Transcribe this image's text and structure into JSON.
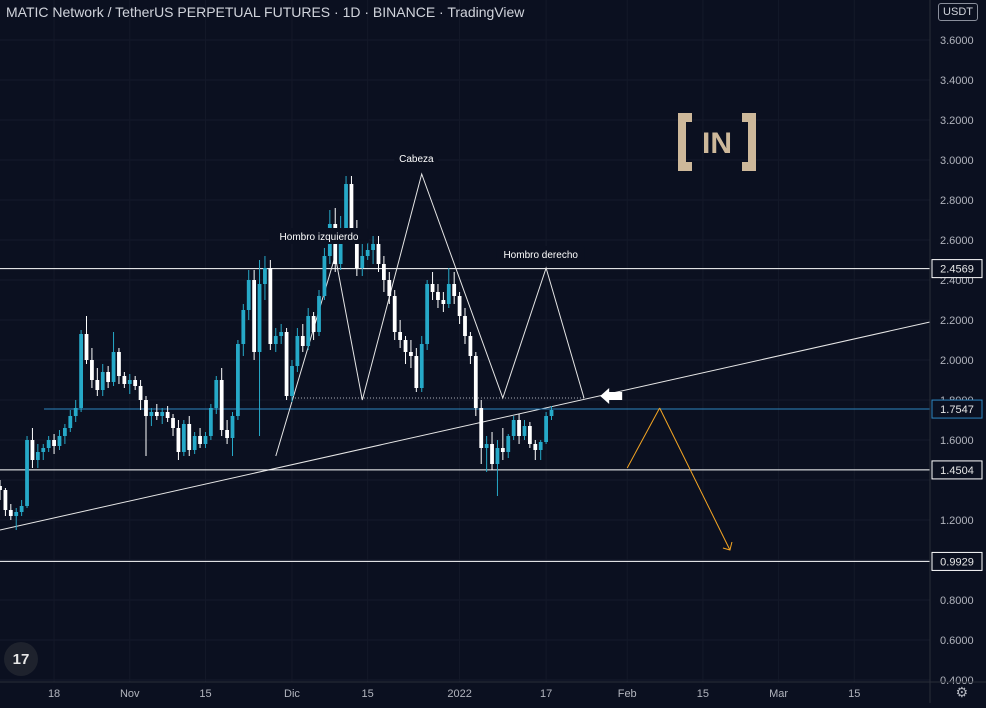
{
  "header": {
    "title": "MATIC Network / TetherUS PERPETUAL FUTURES · 1D · BINANCE · TradingView",
    "unit": "USDT"
  },
  "branding": {
    "logo_text": "IN",
    "tv_logo_text": "17"
  },
  "colors": {
    "background": "#0b1020",
    "bull": "#26a9c8",
    "bear": "#ffffff",
    "accent": "#2e86c1",
    "projection": "#f5a623",
    "axis_text": "#b2b5be",
    "logo": "#cdb89a"
  },
  "chart_data": {
    "type": "candlestick",
    "title": "",
    "y_scale": "linear",
    "ylim": [
      0.3,
      3.9
    ],
    "y_ticks": [
      0.4,
      0.6,
      0.8,
      1.0,
      1.2,
      1.4,
      1.6,
      1.8,
      2.0,
      2.2,
      2.4,
      2.6,
      2.8,
      3.0,
      3.2,
      3.4,
      3.6
    ],
    "y_tick_labels": [
      "0.4000",
      "0.6000",
      "0.8000",
      "",
      "1.2000",
      "",
      "1.6000",
      "1.8000",
      "2.0000",
      "2.2000",
      "2.4000",
      "2.6000",
      "2.8000",
      "3.0000",
      "3.2000",
      "3.4000",
      "3.6000"
    ],
    "x_start": "2021-10-08",
    "x_end": "2022-03-29",
    "x_ticks": [
      {
        "date": "2021-10-18",
        "label": "18"
      },
      {
        "date": "2021-11-01",
        "label": "Nov"
      },
      {
        "date": "2021-11-15",
        "label": "15"
      },
      {
        "date": "2021-12-01",
        "label": "Dic"
      },
      {
        "date": "2021-12-15",
        "label": "15"
      },
      {
        "date": "2022-01-01",
        "label": "2022"
      },
      {
        "date": "2022-01-17",
        "label": "17"
      },
      {
        "date": "2022-02-01",
        "label": "Feb"
      },
      {
        "date": "2022-02-15",
        "label": "15"
      },
      {
        "date": "2022-03-01",
        "label": "Mar"
      },
      {
        "date": "2022-03-15",
        "label": "15"
      }
    ],
    "first_candle_date": "2021-10-08",
    "candles": [
      [
        1.37,
        1.4,
        1.3,
        1.35
      ],
      [
        1.35,
        1.36,
        1.22,
        1.25
      ],
      [
        1.25,
        1.28,
        1.2,
        1.22
      ],
      [
        1.22,
        1.26,
        1.15,
        1.24
      ],
      [
        1.24,
        1.3,
        1.22,
        1.27
      ],
      [
        1.27,
        1.62,
        1.26,
        1.6
      ],
      [
        1.6,
        1.66,
        1.46,
        1.5
      ],
      [
        1.5,
        1.58,
        1.46,
        1.54
      ],
      [
        1.54,
        1.58,
        1.5,
        1.56
      ],
      [
        1.56,
        1.62,
        1.54,
        1.6
      ],
      [
        1.6,
        1.63,
        1.53,
        1.57
      ],
      [
        1.57,
        1.65,
        1.55,
        1.62
      ],
      [
        1.62,
        1.68,
        1.58,
        1.66
      ],
      [
        1.66,
        1.75,
        1.64,
        1.72
      ],
      [
        1.72,
        1.8,
        1.69,
        1.76
      ],
      [
        1.76,
        2.15,
        1.74,
        2.13
      ],
      [
        2.13,
        2.22,
        1.98,
        2.0
      ],
      [
        2.0,
        2.06,
        1.86,
        1.9
      ],
      [
        1.9,
        1.96,
        1.82,
        1.85
      ],
      [
        1.85,
        1.98,
        1.82,
        1.94
      ],
      [
        1.94,
        1.97,
        1.86,
        1.89
      ],
      [
        1.89,
        2.14,
        1.87,
        2.04
      ],
      [
        2.04,
        2.06,
        1.88,
        1.92
      ],
      [
        1.92,
        1.94,
        1.86,
        1.88
      ],
      [
        1.88,
        1.93,
        1.83,
        1.9
      ],
      [
        1.9,
        1.92,
        1.85,
        1.87
      ],
      [
        1.87,
        1.9,
        1.75,
        1.8
      ],
      [
        1.8,
        1.82,
        1.52,
        1.72
      ],
      [
        1.72,
        1.76,
        1.67,
        1.74
      ],
      [
        1.74,
        1.78,
        1.7,
        1.72
      ],
      [
        1.72,
        1.76,
        1.68,
        1.74
      ],
      [
        1.74,
        1.77,
        1.69,
        1.71
      ],
      [
        1.71,
        1.73,
        1.62,
        1.66
      ],
      [
        1.66,
        1.7,
        1.5,
        1.54
      ],
      [
        1.54,
        1.7,
        1.52,
        1.68
      ],
      [
        1.68,
        1.72,
        1.52,
        1.55
      ],
      [
        1.55,
        1.64,
        1.53,
        1.62
      ],
      [
        1.62,
        1.66,
        1.56,
        1.58
      ],
      [
        1.58,
        1.64,
        1.56,
        1.62
      ],
      [
        1.62,
        1.78,
        1.6,
        1.76
      ],
      [
        1.76,
        1.92,
        1.73,
        1.9
      ],
      [
        1.9,
        1.96,
        1.62,
        1.65
      ],
      [
        1.65,
        1.7,
        1.58,
        1.61
      ],
      [
        1.61,
        1.74,
        1.52,
        1.72
      ],
      [
        1.72,
        2.1,
        1.7,
        2.08
      ],
      [
        2.08,
        2.28,
        2.02,
        2.25
      ],
      [
        2.25,
        2.45,
        2.2,
        2.4
      ],
      [
        2.4,
        2.45,
        2.0,
        2.04
      ],
      [
        2.04,
        2.5,
        1.62,
        2.38
      ],
      [
        2.38,
        2.52,
        2.3,
        2.46
      ],
      [
        2.46,
        2.5,
        2.05,
        2.08
      ],
      [
        2.08,
        2.16,
        2.04,
        2.12
      ],
      [
        2.12,
        2.18,
        2.08,
        2.14
      ],
      [
        2.14,
        2.16,
        1.8,
        1.82
      ],
      [
        1.82,
        2.0,
        1.79,
        1.97
      ],
      [
        1.97,
        2.16,
        1.94,
        2.12
      ],
      [
        2.12,
        2.18,
        2.04,
        2.07
      ],
      [
        2.07,
        2.26,
        2.05,
        2.22
      ],
      [
        2.22,
        2.24,
        2.1,
        2.14
      ],
      [
        2.14,
        2.35,
        2.12,
        2.32
      ],
      [
        2.32,
        2.56,
        2.3,
        2.52
      ],
      [
        2.52,
        2.75,
        2.48,
        2.68
      ],
      [
        2.68,
        2.76,
        2.44,
        2.48
      ],
      [
        2.48,
        2.72,
        2.45,
        2.65
      ],
      [
        2.65,
        2.92,
        2.62,
        2.88
      ],
      [
        2.88,
        2.92,
        2.58,
        2.62
      ],
      [
        2.62,
        2.7,
        2.42,
        2.46
      ],
      [
        2.46,
        2.58,
        2.42,
        2.52
      ],
      [
        2.52,
        2.6,
        2.5,
        2.55
      ],
      [
        2.55,
        2.62,
        2.48,
        2.58
      ],
      [
        2.58,
        2.62,
        2.44,
        2.48
      ],
      [
        2.48,
        2.52,
        2.34,
        2.4
      ],
      [
        2.4,
        2.44,
        2.28,
        2.32
      ],
      [
        2.32,
        2.35,
        2.1,
        2.14
      ],
      [
        2.14,
        2.2,
        2.06,
        2.1
      ],
      [
        2.1,
        2.12,
        1.98,
        2.04
      ],
      [
        2.04,
        2.1,
        1.96,
        2.02
      ],
      [
        2.02,
        2.06,
        1.84,
        1.86
      ],
      [
        1.86,
        2.12,
        1.84,
        2.08
      ],
      [
        2.08,
        2.4,
        2.05,
        2.38
      ],
      [
        2.38,
        2.44,
        2.3,
        2.34
      ],
      [
        2.34,
        2.38,
        2.26,
        2.3
      ],
      [
        2.3,
        2.34,
        2.24,
        2.28
      ],
      [
        2.28,
        2.46,
        2.26,
        2.38
      ],
      [
        2.38,
        2.44,
        2.28,
        2.32
      ],
      [
        2.32,
        2.34,
        2.18,
        2.22
      ],
      [
        2.22,
        2.26,
        2.08,
        2.12
      ],
      [
        2.12,
        2.14,
        1.98,
        2.02
      ],
      [
        2.02,
        2.04,
        1.72,
        1.76
      ],
      [
        1.76,
        1.8,
        1.48,
        1.56
      ],
      [
        1.56,
        1.62,
        1.44,
        1.58
      ],
      [
        1.58,
        1.64,
        1.45,
        1.48
      ],
      [
        1.48,
        1.6,
        1.32,
        1.56
      ],
      [
        1.56,
        1.66,
        1.5,
        1.54
      ],
      [
        1.54,
        1.63,
        1.51,
        1.62
      ],
      [
        1.62,
        1.72,
        1.6,
        1.7
      ],
      [
        1.7,
        1.73,
        1.58,
        1.62
      ],
      [
        1.62,
        1.7,
        1.6,
        1.67
      ],
      [
        1.67,
        1.69,
        1.56,
        1.58
      ],
      [
        1.58,
        1.6,
        1.5,
        1.55
      ],
      [
        1.55,
        1.6,
        1.5,
        1.59
      ],
      [
        1.59,
        1.74,
        1.58,
        1.72
      ],
      [
        1.72,
        1.77,
        1.7,
        1.75
      ]
    ],
    "horizontal_levels": [
      {
        "value": 2.4569,
        "label": "2.4569",
        "color": "#ffffff"
      },
      {
        "value": 1.7547,
        "label": "1.7547",
        "color": "#2e86c1"
      },
      {
        "value": 1.4504,
        "label": "1.4504",
        "color": "#ffffff"
      },
      {
        "value": 0.9929,
        "label": "0.9929",
        "color": "#ffffff"
      }
    ],
    "trendline": {
      "from": [
        "2021-10-08",
        1.15
      ],
      "to": [
        "2022-03-29",
        2.19
      ]
    },
    "neckline_dotted": {
      "from": [
        "2021-12-01",
        1.81
      ],
      "to": [
        "2022-01-24",
        1.81
      ]
    },
    "pattern_path": [
      [
        "2021-11-28",
        1.52
      ],
      [
        "2021-12-09",
        2.52
      ],
      [
        "2021-12-14",
        1.8
      ],
      [
        "2021-12-25",
        2.93
      ],
      [
        "2022-01-09",
        1.81
      ],
      [
        "2022-01-17",
        2.46
      ],
      [
        "2022-01-24",
        1.81
      ]
    ],
    "projection": {
      "from": [
        "2022-02-07",
        1.76
      ],
      "to": [
        "2022-02-20",
        1.05
      ],
      "color": "#f5a623"
    },
    "projection_start": {
      "from": [
        "2022-02-01",
        1.46
      ],
      "to": [
        "2022-02-07",
        1.76
      ],
      "color": "#f5a623"
    },
    "arrow_marker": {
      "date": "2022-01-27",
      "value": 1.82
    },
    "annotations": [
      {
        "text": "Hombro izquierdo",
        "date": "2021-12-06",
        "value": 2.62
      },
      {
        "text": "Cabeza",
        "date": "2021-12-24",
        "value": 3.01
      },
      {
        "text": "Hombro derecho",
        "date": "2022-01-16",
        "value": 2.53
      }
    ]
  }
}
